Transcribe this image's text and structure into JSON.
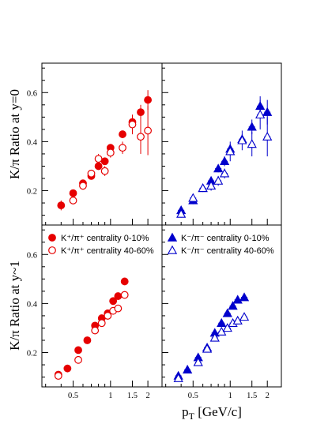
{
  "figure": {
    "y_axis_top_title": "K/π Ratio at y=0",
    "y_axis_bottom_title": "K/π Ratio at y~1",
    "x_axis_title": "pT [GeV/c]"
  },
  "legend_left": [
    {
      "label": "K⁺/π⁺ centrality 0-10%",
      "marker": "circle-filled",
      "color": "#e60000"
    },
    {
      "label": "K⁺/π⁺ centrality 40-60%",
      "marker": "circle-open",
      "color": "#e60000"
    }
  ],
  "legend_right": [
    {
      "label": "K⁻/π⁻ centrality 0-10%",
      "marker": "triangle-filled",
      "color": "#0000cc"
    },
    {
      "label": "K⁻/π⁻ centrality 40-60%",
      "marker": "triangle-open",
      "color": "#0000cc"
    }
  ],
  "chart_data": [
    {
      "type": "scatter",
      "panel": "top-left",
      "ylabel": "K/π Ratio at y=0",
      "xscale": "log",
      "xlim": [
        0.28,
        2.6
      ],
      "ylim": [
        0.06,
        0.72
      ],
      "y_ticks": [
        0.2,
        0.4,
        0.6
      ],
      "y_tick_labels": [
        "0.2",
        "0.4",
        "0.6"
      ],
      "series": [
        {
          "name": "K⁺/π⁺ centrality 0-10%",
          "marker": "circle-filled",
          "color": "#e60000",
          "x": [
            0.4,
            0.5,
            0.6,
            0.7,
            0.8,
            0.9,
            1.0,
            1.25,
            1.5,
            1.75,
            2.0
          ],
          "y": [
            0.14,
            0.19,
            0.23,
            0.26,
            0.3,
            0.32,
            0.375,
            0.43,
            0.48,
            0.52,
            0.57
          ],
          "yerr": [
            0.02,
            0.015,
            0.015,
            0.015,
            0.015,
            0.015,
            0.015,
            0.015,
            0.03,
            0.03,
            0.04
          ]
        },
        {
          "name": "K⁺/π⁺ centrality 40-60%",
          "marker": "circle-open",
          "color": "#e60000",
          "x": [
            0.5,
            0.6,
            0.7,
            0.8,
            0.9,
            1.0,
            1.25,
            1.5,
            1.75,
            2.0
          ],
          "y": [
            0.16,
            0.22,
            0.27,
            0.33,
            0.28,
            0.355,
            0.375,
            0.47,
            0.42,
            0.445
          ],
          "yerr": [
            0.015,
            0.015,
            0.015,
            0.02,
            0.02,
            0.02,
            0.025,
            0.04,
            0.07,
            0.1
          ]
        }
      ]
    },
    {
      "type": "scatter",
      "panel": "top-right",
      "xscale": "log",
      "xlim": [
        0.28,
        2.6
      ],
      "ylim": [
        0.06,
        0.72
      ],
      "series": [
        {
          "name": "K⁻/π⁻ centrality 0-10%",
          "marker": "triangle-filled",
          "color": "#0000cc",
          "x": [
            0.4,
            0.5,
            0.6,
            0.7,
            0.8,
            0.9,
            1.0,
            1.25,
            1.5,
            1.75,
            2.0
          ],
          "y": [
            0.12,
            0.16,
            0.21,
            0.24,
            0.29,
            0.32,
            0.37,
            0.41,
            0.46,
            0.545,
            0.52
          ],
          "yerr": [
            0.015,
            0.015,
            0.015,
            0.015,
            0.015,
            0.02,
            0.02,
            0.02,
            0.03,
            0.04,
            0.05
          ]
        },
        {
          "name": "K⁻/π⁻ centrality 40-60%",
          "marker": "triangle-open",
          "color": "#0000cc",
          "x": [
            0.4,
            0.5,
            0.6,
            0.7,
            0.8,
            0.9,
            1.0,
            1.25,
            1.5,
            1.75,
            2.0
          ],
          "y": [
            0.105,
            0.17,
            0.21,
            0.22,
            0.24,
            0.27,
            0.36,
            0.405,
            0.39,
            0.51,
            0.42
          ],
          "yerr": [
            0.015,
            0.015,
            0.015,
            0.02,
            0.02,
            0.02,
            0.04,
            0.04,
            0.05,
            0.06,
            0.08
          ]
        }
      ]
    },
    {
      "type": "scatter",
      "panel": "bottom-left",
      "ylabel": "K/π Ratio at y~1",
      "xlabel": "pT [GeV/c]",
      "xscale": "log",
      "xlim": [
        0.28,
        2.6
      ],
      "ylim": [
        0.06,
        0.72
      ],
      "y_ticks": [
        0.2,
        0.4,
        0.6
      ],
      "y_tick_labels": [
        "0.2",
        "0.4",
        "0.6"
      ],
      "x_ticks": [
        0.5,
        1,
        1.5,
        2
      ],
      "x_tick_labels": [
        "0.5",
        "1",
        "1.5",
        "2"
      ],
      "series": [
        {
          "name": "K⁺/π⁺ centrality 0-10%",
          "marker": "circle-filled",
          "color": "#e60000",
          "x": [
            0.38,
            0.45,
            0.55,
            0.65,
            0.75,
            0.85,
            0.95,
            1.05,
            1.15,
            1.3
          ],
          "y": [
            0.11,
            0.135,
            0.21,
            0.25,
            0.31,
            0.34,
            0.36,
            0.41,
            0.43,
            0.49
          ],
          "yerr": [
            0.01,
            0.01,
            0.01,
            0.01,
            0.01,
            0.01,
            0.01,
            0.01,
            0.01,
            0.01
          ]
        },
        {
          "name": "K⁺/π⁺ centrality 40-60%",
          "marker": "circle-open",
          "color": "#e60000",
          "x": [
            0.38,
            0.55,
            0.75,
            0.85,
            0.95,
            1.05,
            1.15,
            1.3
          ],
          "y": [
            0.105,
            0.17,
            0.29,
            0.32,
            0.35,
            0.37,
            0.38,
            0.435
          ],
          "yerr": [
            0.01,
            0.01,
            0.01,
            0.01,
            0.01,
            0.015,
            0.015,
            0.015
          ]
        }
      ]
    },
    {
      "type": "scatter",
      "panel": "bottom-right",
      "xscale": "log",
      "xlim": [
        0.28,
        2.6
      ],
      "ylim": [
        0.06,
        0.72
      ],
      "x_ticks": [
        0.5,
        1,
        1.5,
        2
      ],
      "x_tick_labels": [
        "0.5",
        "1",
        "1.5",
        "2"
      ],
      "series": [
        {
          "name": "K⁻/π⁻ centrality 0-10%",
          "marker": "triangle-filled",
          "color": "#0000cc",
          "x": [
            0.38,
            0.45,
            0.55,
            0.65,
            0.75,
            0.85,
            0.95,
            1.05,
            1.15,
            1.3
          ],
          "y": [
            0.105,
            0.13,
            0.18,
            0.22,
            0.28,
            0.32,
            0.36,
            0.39,
            0.415,
            0.425
          ],
          "yerr": [
            0.01,
            0.01,
            0.01,
            0.01,
            0.01,
            0.01,
            0.01,
            0.01,
            0.01,
            0.01
          ]
        },
        {
          "name": "K⁻/π⁻ centrality 40-60%",
          "marker": "triangle-open",
          "color": "#0000cc",
          "x": [
            0.38,
            0.55,
            0.65,
            0.75,
            0.85,
            0.95,
            1.05,
            1.15,
            1.3
          ],
          "y": [
            0.095,
            0.16,
            0.215,
            0.26,
            0.285,
            0.3,
            0.32,
            0.33,
            0.345
          ],
          "yerr": [
            0.01,
            0.01,
            0.01,
            0.01,
            0.01,
            0.01,
            0.015,
            0.015,
            0.015
          ]
        }
      ]
    }
  ]
}
